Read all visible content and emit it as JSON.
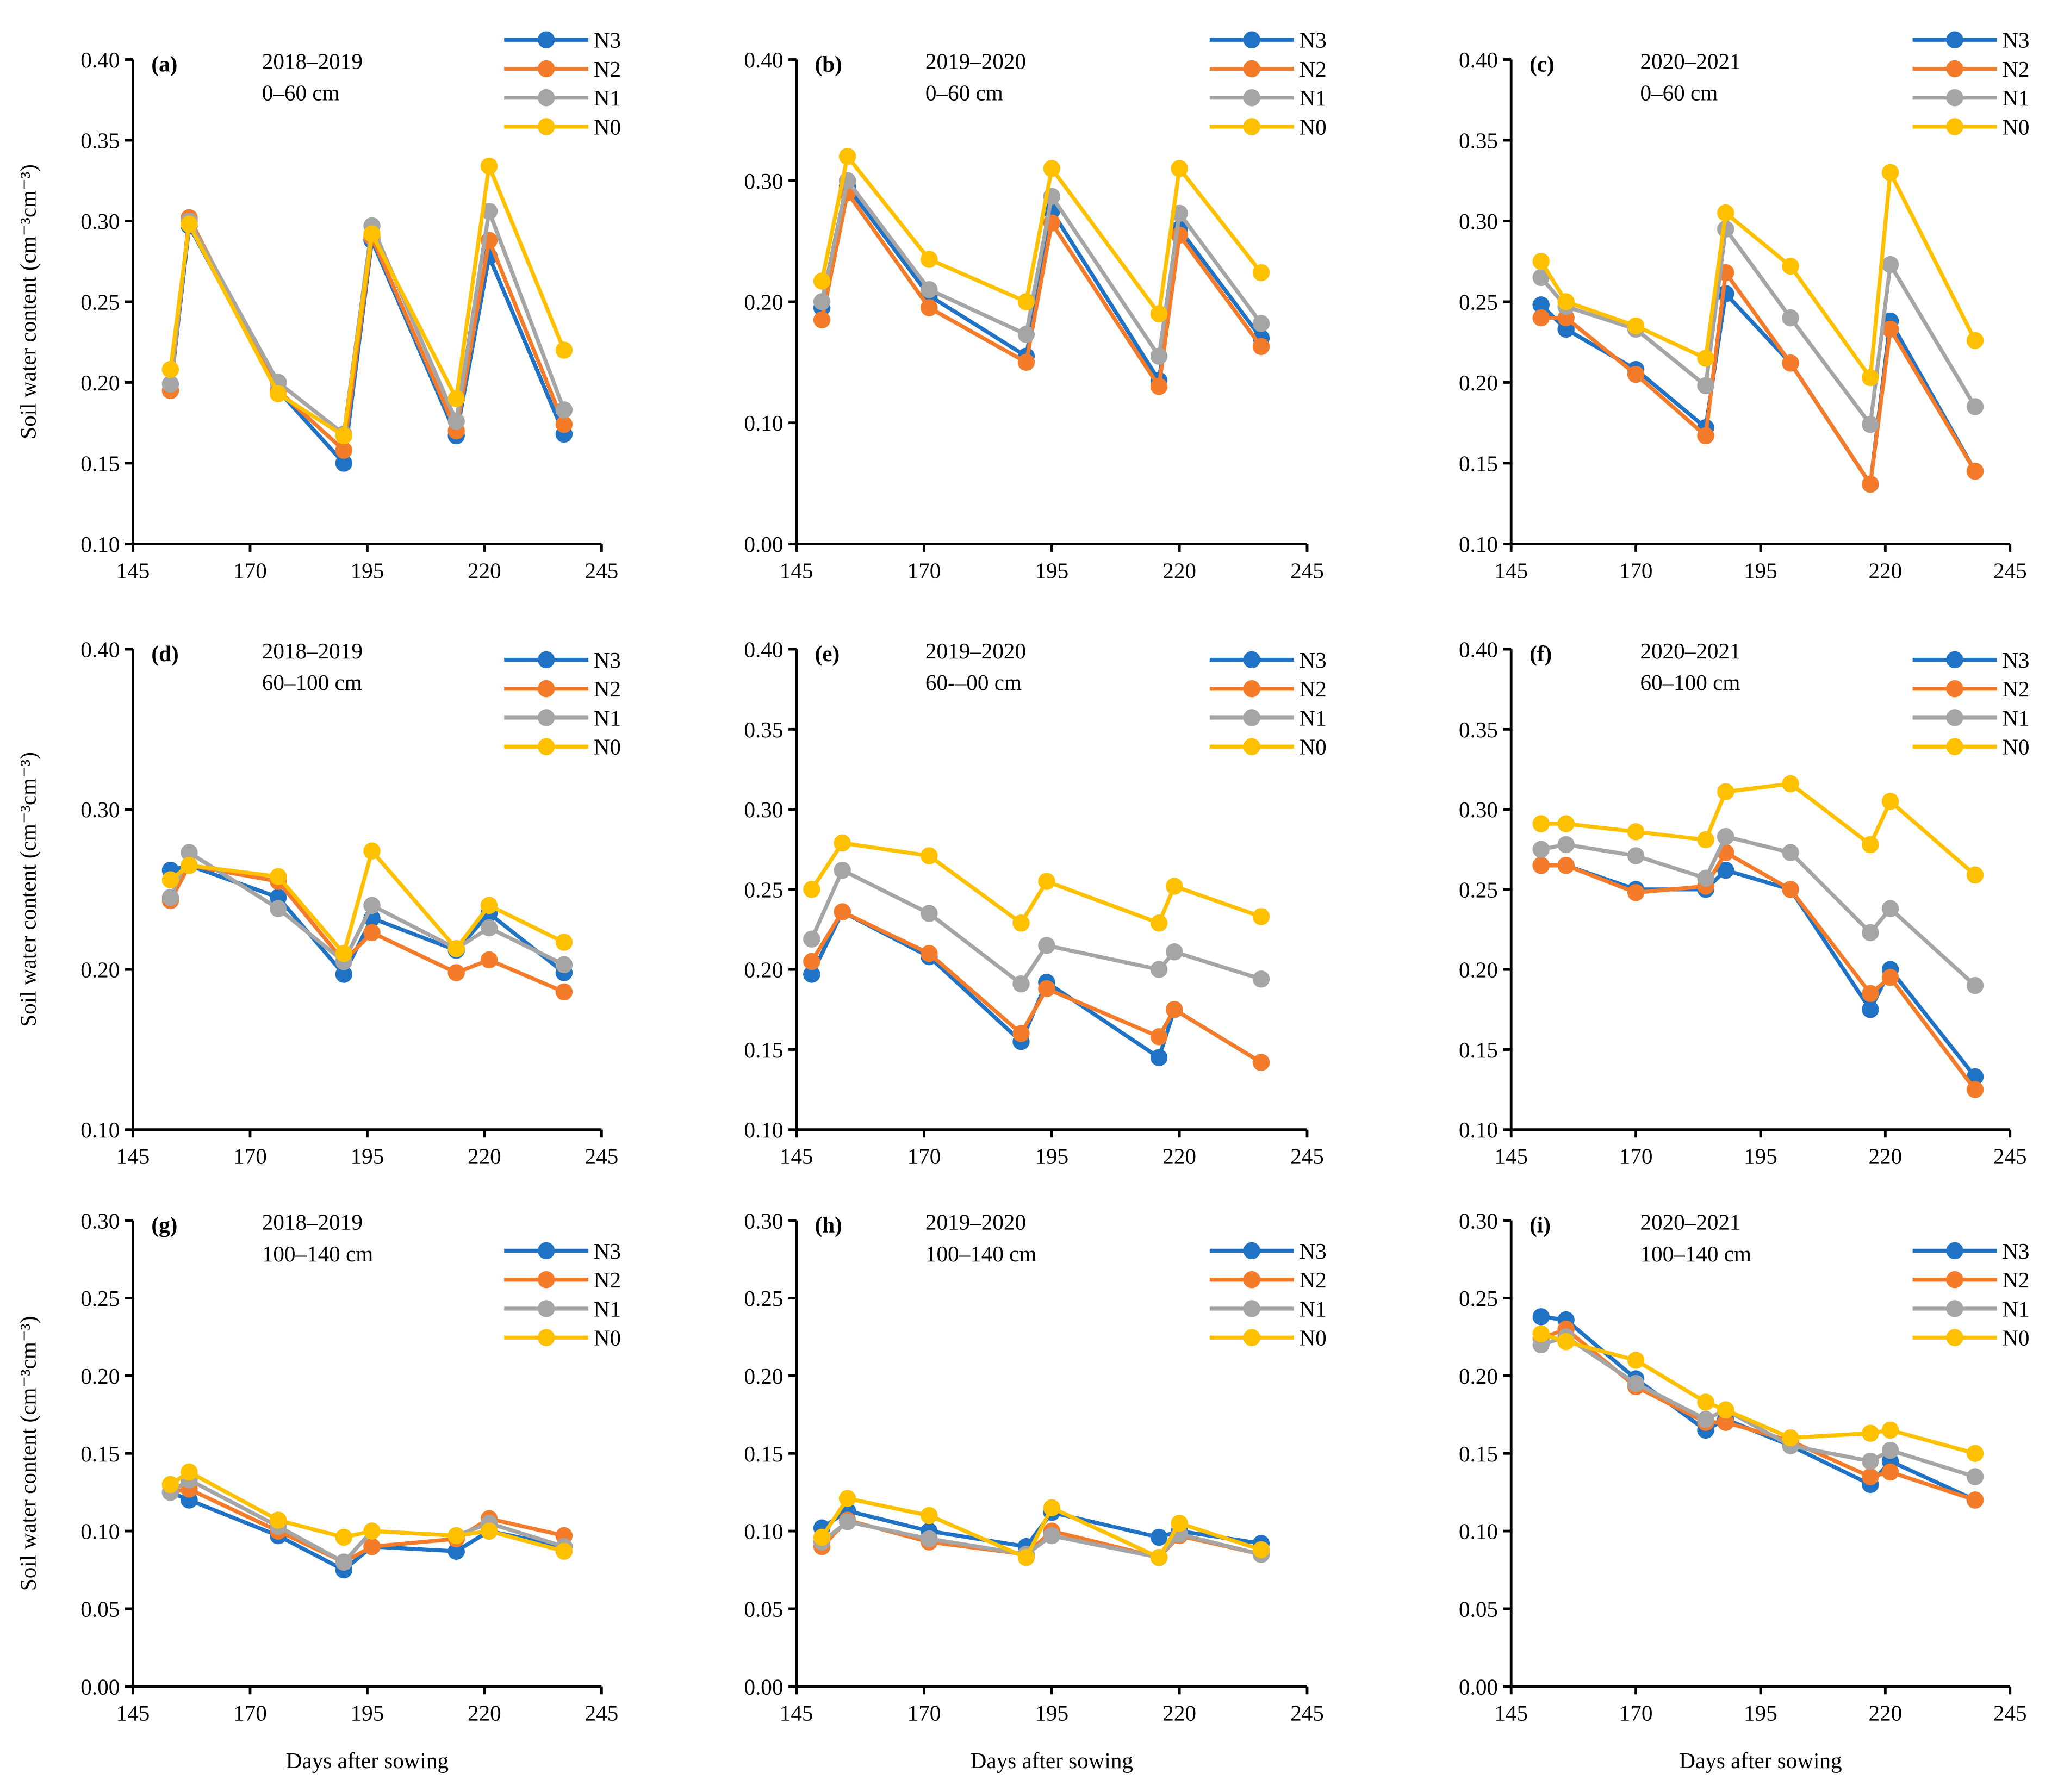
{
  "legend_order": [
    "N3",
    "N2",
    "N1",
    "N0"
  ],
  "series_colors": {
    "N3": "#1f72c4",
    "N2": "#f47b2a",
    "N1": "#a5a5a5",
    "N0": "#ffc000"
  },
  "ylabel": "Soil water content (cm⁻³cm⁻³)",
  "xlabel": "Days after sowing",
  "chart_data": [
    {
      "type": "line",
      "panel": "(a)",
      "season": "2018–2019",
      "depth": "0–60 cm",
      "xlim": [
        145,
        245
      ],
      "ylim": [
        0.1,
        0.4
      ],
      "xticks": [
        "145",
        "170",
        "195",
        "220",
        "245"
      ],
      "yticks": [
        "0.10",
        "0.15",
        "0.20",
        "0.25",
        "0.30",
        "0.35",
        "0.40"
      ],
      "x": [
        153,
        157,
        176,
        190,
        196,
        214,
        221,
        237
      ],
      "series": [
        {
          "name": "N3",
          "values": [
            0.195,
            0.297,
            0.195,
            0.15,
            0.288,
            0.167,
            0.278,
            0.168
          ]
        },
        {
          "name": "N2",
          "values": [
            0.195,
            0.302,
            0.195,
            0.158,
            0.29,
            0.17,
            0.288,
            0.174
          ]
        },
        {
          "name": "N1",
          "values": [
            0.199,
            0.3,
            0.2,
            0.168,
            0.297,
            0.176,
            0.306,
            0.183
          ]
        },
        {
          "name": "N0",
          "values": [
            0.208,
            0.298,
            0.193,
            0.167,
            0.292,
            0.19,
            0.334,
            0.22
          ]
        }
      ]
    },
    {
      "type": "line",
      "panel": "(b)",
      "season": "2019–2020",
      "depth": "0–60 cm",
      "xlim": [
        145,
        245
      ],
      "ylim": [
        0.0,
        0.4
      ],
      "xticks": [
        "145",
        "170",
        "195",
        "220",
        "245"
      ],
      "yticks": [
        "0.00",
        "0.10",
        "0.20",
        "0.30",
        "0.40"
      ],
      "x": [
        150,
        155,
        171,
        190,
        195,
        216,
        220,
        236
      ],
      "series": [
        {
          "name": "N3",
          "values": [
            0.195,
            0.295,
            0.205,
            0.155,
            0.275,
            0.135,
            0.26,
            0.17
          ]
        },
        {
          "name": "N2",
          "values": [
            0.185,
            0.29,
            0.195,
            0.15,
            0.265,
            0.13,
            0.255,
            0.163
          ]
        },
        {
          "name": "N1",
          "values": [
            0.2,
            0.3,
            0.21,
            0.173,
            0.287,
            0.155,
            0.273,
            0.182
          ]
        },
        {
          "name": "N0",
          "values": [
            0.217,
            0.32,
            0.235,
            0.2,
            0.31,
            0.19,
            0.31,
            0.224
          ]
        }
      ]
    },
    {
      "type": "line",
      "panel": "(c)",
      "season": "2020–2021",
      "depth": "0–60 cm",
      "xlim": [
        145,
        245
      ],
      "ylim": [
        0.1,
        0.4
      ],
      "xticks": [
        "145",
        "170",
        "195",
        "220",
        "245"
      ],
      "yticks": [
        "0.10",
        "0.15",
        "0.20",
        "0.25",
        "0.30",
        "0.35",
        "0.40"
      ],
      "x": [
        151,
        156,
        170,
        184,
        188,
        201,
        217,
        221,
        238
      ],
      "series": [
        {
          "name": "N3",
          "values": [
            0.248,
            0.233,
            0.208,
            0.172,
            0.255,
            0.212,
            0.137,
            0.238,
            0.145
          ]
        },
        {
          "name": "N2",
          "values": [
            0.24,
            0.24,
            0.205,
            0.167,
            0.268,
            0.212,
            0.137,
            0.233,
            0.145
          ]
        },
        {
          "name": "N1",
          "values": [
            0.265,
            0.247,
            0.233,
            0.198,
            0.295,
            0.24,
            0.174,
            0.273,
            0.185
          ]
        },
        {
          "name": "N0",
          "values": [
            0.275,
            0.25,
            0.235,
            0.215,
            0.305,
            0.272,
            0.203,
            0.33,
            0.226
          ]
        }
      ]
    },
    {
      "type": "line",
      "panel": "(d)",
      "season": "2018–2019",
      "depth": "60–100 cm",
      "xlim": [
        145,
        245
      ],
      "ylim": [
        0.1,
        0.4
      ],
      "xticks": [
        "145",
        "170",
        "195",
        "220",
        "245"
      ],
      "yticks": [
        "0.10",
        "0.20",
        "0.30",
        "0.40"
      ],
      "x": [
        153,
        157,
        176,
        190,
        196,
        214,
        221,
        237
      ],
      "series": [
        {
          "name": "N3",
          "values": [
            0.262,
            0.265,
            0.245,
            0.197,
            0.232,
            0.212,
            0.235,
            0.198
          ]
        },
        {
          "name": "N2",
          "values": [
            0.243,
            0.265,
            0.255,
            0.205,
            0.223,
            0.198,
            0.206,
            0.186
          ]
        },
        {
          "name": "N1",
          "values": [
            0.245,
            0.273,
            0.238,
            0.205,
            0.24,
            0.213,
            0.226,
            0.203
          ]
        },
        {
          "name": "N0",
          "values": [
            0.256,
            0.265,
            0.258,
            0.21,
            0.274,
            0.213,
            0.24,
            0.217
          ]
        }
      ]
    },
    {
      "type": "line",
      "panel": "(e)",
      "season": "2019–2020",
      "depth": "60-–00 cm",
      "xlim": [
        145,
        245
      ],
      "ylim": [
        0.1,
        0.4
      ],
      "xticks": [
        "145",
        "170",
        "195",
        "220",
        "245"
      ],
      "yticks": [
        "0.10",
        "0.15",
        "0.20",
        "0.25",
        "0.30",
        "0.35",
        "0.40"
      ],
      "x": [
        148,
        154,
        171,
        189,
        194,
        216,
        219,
        236
      ],
      "series": [
        {
          "name": "N3",
          "values": [
            0.197,
            0.236,
            0.208,
            0.155,
            0.192,
            0.145,
            0.175,
            0.142
          ]
        },
        {
          "name": "N2",
          "values": [
            0.205,
            0.236,
            0.21,
            0.16,
            0.188,
            0.158,
            0.175,
            0.142
          ]
        },
        {
          "name": "N1",
          "values": [
            0.219,
            0.262,
            0.235,
            0.191,
            0.215,
            0.2,
            0.211,
            0.194
          ]
        },
        {
          "name": "N0",
          "values": [
            0.25,
            0.279,
            0.271,
            0.229,
            0.255,
            0.229,
            0.252,
            0.233
          ]
        }
      ]
    },
    {
      "type": "line",
      "panel": "(f)",
      "season": "2020–2021",
      "depth": "60–100 cm",
      "xlim": [
        145,
        245
      ],
      "ylim": [
        0.1,
        0.4
      ],
      "xticks": [
        "145",
        "170",
        "195",
        "220",
        "245"
      ],
      "yticks": [
        "0.10",
        "0.15",
        "0.20",
        "0.25",
        "0.30",
        "0.35",
        "0.40"
      ],
      "x": [
        151,
        156,
        170,
        184,
        188,
        201,
        217,
        221,
        238
      ],
      "series": [
        {
          "name": "N3",
          "values": [
            0.265,
            0.265,
            0.25,
            0.25,
            0.262,
            0.25,
            0.175,
            0.2,
            0.133
          ]
        },
        {
          "name": "N2",
          "values": [
            0.265,
            0.265,
            0.248,
            0.252,
            0.273,
            0.25,
            0.185,
            0.195,
            0.125
          ]
        },
        {
          "name": "N1",
          "values": [
            0.275,
            0.278,
            0.271,
            0.257,
            0.283,
            0.273,
            0.223,
            0.238,
            0.19
          ]
        },
        {
          "name": "N0",
          "values": [
            0.291,
            0.291,
            0.286,
            0.281,
            0.311,
            0.316,
            0.278,
            0.305,
            0.259
          ]
        }
      ]
    },
    {
      "type": "line",
      "panel": "(g)",
      "season": "2018–2019",
      "depth": "100–140 cm",
      "xlim": [
        145,
        245
      ],
      "ylim": [
        0.0,
        0.3
      ],
      "xticks": [
        "145",
        "170",
        "195",
        "220",
        "245"
      ],
      "yticks": [
        "0.00",
        "0.05",
        "0.10",
        "0.15",
        "0.20",
        "0.25",
        "0.30"
      ],
      "x": [
        153,
        157,
        176,
        190,
        196,
        214,
        221,
        237
      ],
      "series": [
        {
          "name": "N3",
          "values": [
            0.125,
            0.12,
            0.097,
            0.075,
            0.09,
            0.087,
            0.1,
            0.09
          ]
        },
        {
          "name": "N2",
          "values": [
            0.125,
            0.127,
            0.1,
            0.08,
            0.09,
            0.095,
            0.108,
            0.097
          ]
        },
        {
          "name": "N1",
          "values": [
            0.125,
            0.133,
            0.103,
            0.08,
            0.1,
            0.097,
            0.105,
            0.09
          ]
        },
        {
          "name": "N0",
          "values": [
            0.13,
            0.138,
            0.107,
            0.096,
            0.1,
            0.097,
            0.1,
            0.087
          ]
        }
      ]
    },
    {
      "type": "line",
      "panel": "(h)",
      "season": "2019–2020",
      "depth": "100–140 cm",
      "xlim": [
        145,
        245
      ],
      "ylim": [
        0.0,
        0.3
      ],
      "xticks": [
        "145",
        "170",
        "195",
        "220",
        "245"
      ],
      "yticks": [
        "0.00",
        "0.05",
        "0.10",
        "0.15",
        "0.20",
        "0.25",
        "0.30"
      ],
      "x": [
        150,
        155,
        171,
        190,
        195,
        216,
        220,
        236
      ],
      "series": [
        {
          "name": "N3",
          "values": [
            0.102,
            0.113,
            0.1,
            0.09,
            0.112,
            0.096,
            0.1,
            0.092
          ]
        },
        {
          "name": "N2",
          "values": [
            0.09,
            0.107,
            0.093,
            0.085,
            0.1,
            0.083,
            0.097,
            0.085
          ]
        },
        {
          "name": "N1",
          "values": [
            0.093,
            0.106,
            0.095,
            0.085,
            0.097,
            0.083,
            0.098,
            0.085
          ]
        },
        {
          "name": "N0",
          "values": [
            0.096,
            0.121,
            0.11,
            0.083,
            0.115,
            0.083,
            0.105,
            0.088
          ]
        }
      ]
    },
    {
      "type": "line",
      "panel": "(i)",
      "season": "2020–2021",
      "depth": "100–140 cm",
      "xlim": [
        145,
        245
      ],
      "ylim": [
        0.0,
        0.3
      ],
      "xticks": [
        "145",
        "170",
        "195",
        "220",
        "245"
      ],
      "yticks": [
        "0.00",
        "0.05",
        "0.10",
        "0.15",
        "0.20",
        "0.25",
        "0.30"
      ],
      "x": [
        151,
        156,
        170,
        184,
        188,
        201,
        217,
        221,
        238
      ],
      "series": [
        {
          "name": "N3",
          "values": [
            0.238,
            0.236,
            0.198,
            0.165,
            0.172,
            0.155,
            0.13,
            0.145,
            0.12
          ]
        },
        {
          "name": "N2",
          "values": [
            0.224,
            0.23,
            0.193,
            0.17,
            0.17,
            0.158,
            0.135,
            0.138,
            0.12
          ]
        },
        {
          "name": "N1",
          "values": [
            0.22,
            0.225,
            0.195,
            0.172,
            0.178,
            0.155,
            0.145,
            0.152,
            0.135
          ]
        },
        {
          "name": "N0",
          "values": [
            0.227,
            0.222,
            0.21,
            0.183,
            0.178,
            0.16,
            0.163,
            0.165,
            0.15
          ]
        }
      ]
    }
  ]
}
